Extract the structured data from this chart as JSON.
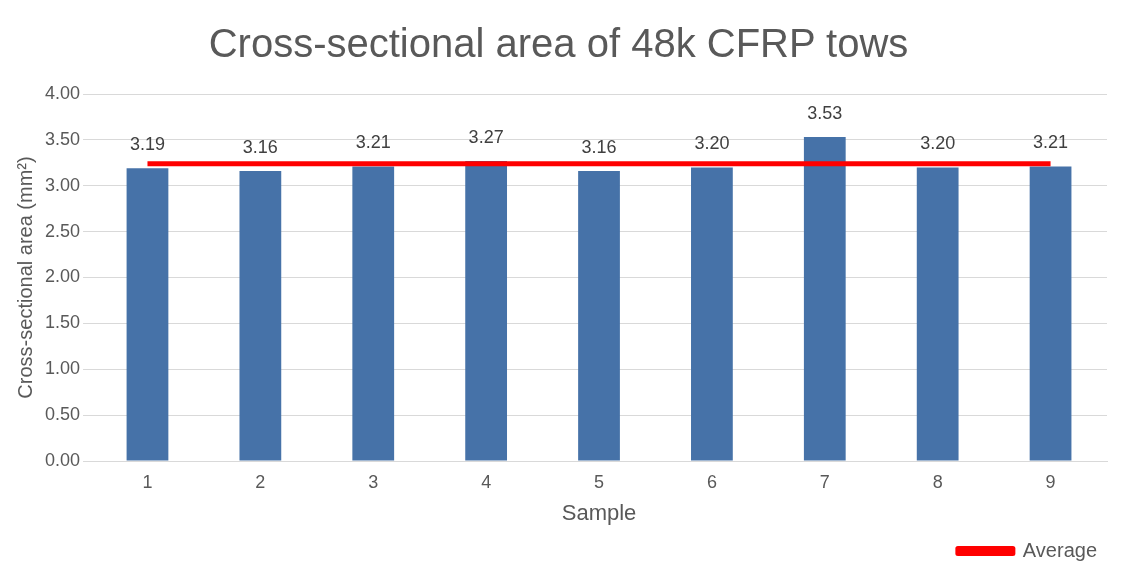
{
  "chart_data": {
    "type": "bar",
    "title": "Cross-sectional area of 48k CFRP tows",
    "xlabel": "Sample",
    "ylabel": "Cross-sectional area (mm²)",
    "categories": [
      "1",
      "2",
      "3",
      "4",
      "5",
      "6",
      "7",
      "8",
      "9"
    ],
    "series": [
      {
        "color": "#4672a8",
        "values": [
          3.19,
          3.16,
          3.21,
          3.27,
          3.16,
          3.2,
          3.53,
          3.2,
          3.21
        ],
        "value_labels": [
          "3.19",
          "3.16",
          "3.21",
          "3.27",
          "3.16",
          "3.20",
          "3.53",
          "3.20",
          "3.21"
        ]
      },
      {
        "type": "line",
        "name": "Average",
        "color": "#ff0000",
        "values": [
          3.24,
          3.24,
          3.24,
          3.24,
          3.24,
          3.24,
          3.24,
          3.24,
          3.24
        ]
      }
    ],
    "ylim": [
      0,
      4
    ],
    "yticks": [
      {
        "value": 0,
        "label": "0.00"
      },
      {
        "value": 0.5,
        "label": "0.50"
      },
      {
        "value": 1,
        "label": "1.00"
      },
      {
        "value": 1.5,
        "label": "1.50"
      },
      {
        "value": 2,
        "label": "2.00"
      },
      {
        "value": 2.5,
        "label": "2.50"
      },
      {
        "value": 3,
        "label": "3.00"
      },
      {
        "value": 3.5,
        "label": "3.50"
      },
      {
        "value": 4,
        "label": "4.00"
      }
    ],
    "grid": "y",
    "legend": "bottom right",
    "marker": "none",
    "line_style": "solid"
  }
}
